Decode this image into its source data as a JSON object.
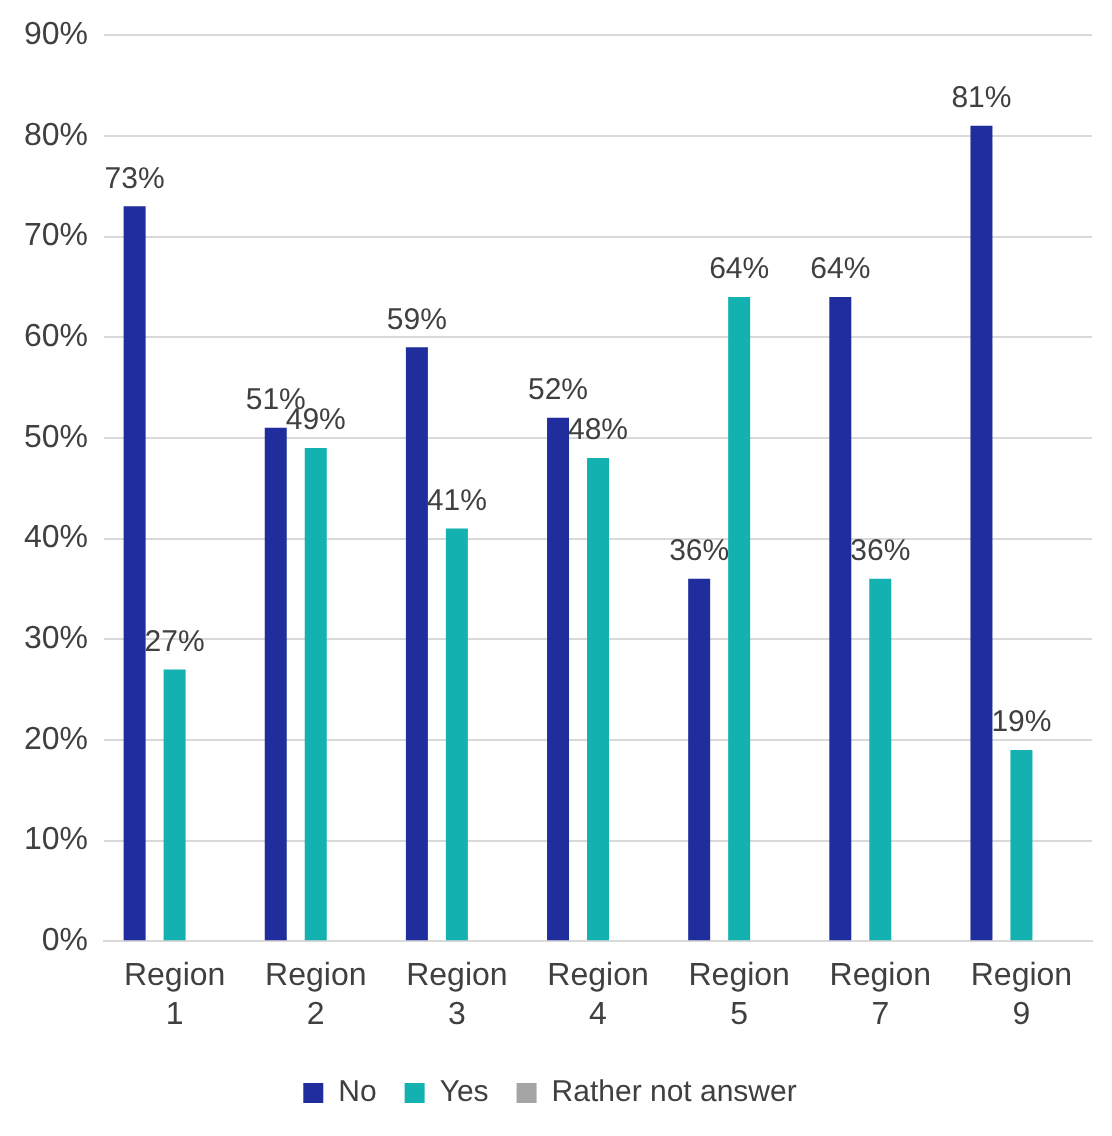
{
  "chart_data": {
    "type": "bar",
    "categories": [
      "Region 1",
      "Region 2",
      "Region 3",
      "Region 4",
      "Region 5",
      "Region 7",
      "Region 9"
    ],
    "series": [
      {
        "name": "No",
        "color": "#1f2e9c",
        "values": [
          73,
          51,
          59,
          52,
          36,
          64,
          81
        ],
        "value_labels": [
          "73%",
          "51%",
          "59%",
          "52%",
          "36%",
          "64%",
          "81%"
        ]
      },
      {
        "name": "Yes",
        "color": "#14b1b1",
        "values": [
          27,
          49,
          41,
          48,
          64,
          36,
          19
        ],
        "value_labels": [
          "27%",
          "49%",
          "41%",
          "48%",
          "64%",
          "36%",
          "19%"
        ]
      },
      {
        "name": "Rather not answer",
        "color": "#a5a5a5",
        "values": [
          0,
          0,
          0,
          0,
          0,
          0,
          0
        ]
      }
    ],
    "ylim": [
      0,
      90
    ],
    "yticks": [
      {
        "value": 0,
        "label": "0%"
      },
      {
        "value": 10,
        "label": "10%"
      },
      {
        "value": 20,
        "label": "20%"
      },
      {
        "value": 30,
        "label": "30%"
      },
      {
        "value": 40,
        "label": "40%"
      },
      {
        "value": 50,
        "label": "50%"
      },
      {
        "value": 60,
        "label": "60%"
      },
      {
        "value": 70,
        "label": "70%"
      },
      {
        "value": 80,
        "label": "80%"
      },
      {
        "value": 90,
        "label": "90%"
      }
    ],
    "grid": "y",
    "legend": "bottom"
  }
}
